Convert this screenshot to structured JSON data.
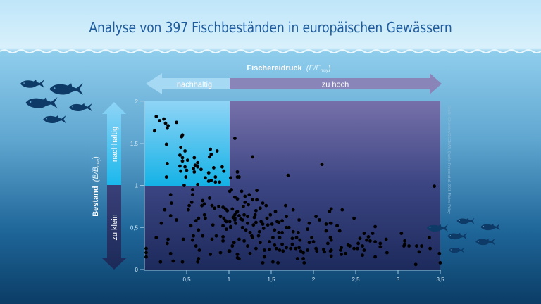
{
  "title": "Analyse von 397 Fischbeständen in europäischen Gewässern",
  "credit": "Grafik: C.Kersten/GEOMAR, Quelle: Froese et al. 2018 Marine Policy",
  "x_arrow": {
    "title_bold": "Fischereidruck",
    "title_formula": "(F/F",
    "title_sub": "msy",
    "title_close": ")",
    "left_label": "nachhaltig",
    "right_label": "zu hoch"
  },
  "y_arrow": {
    "title_bold": "Bestand",
    "title_formula": "(B/B",
    "title_sub": "msy",
    "title_close": ")",
    "top_label": "nachhaltig",
    "bottom_label": "zu klein"
  },
  "colors": {
    "sustainable_zone": "#5cc6f0",
    "overfished_zone": "#4a4f8e",
    "points": "#000000",
    "title": "#1f5c9e",
    "fish": "#0d3a66"
  },
  "chart_data": {
    "type": "scatter",
    "title": "Analyse von 397 Fischbeständen in europäischen Gewässern",
    "xlabel": "Fischereidruck (F/Fmsy)",
    "ylabel": "Bestand (B/Bmsy)",
    "xlim": [
      0,
      3.5
    ],
    "ylim": [
      0,
      2
    ],
    "x_ticks": [
      "0,5",
      "1",
      "1,5",
      "2",
      "2,5",
      "3",
      "3,5"
    ],
    "y_ticks": [
      "0",
      "0,5",
      "1",
      "1,5",
      "2"
    ],
    "x_tick_values": [
      0.5,
      1,
      1.5,
      2,
      2.5,
      3,
      3.5
    ],
    "y_tick_values": [
      0,
      0.5,
      1,
      1.5,
      2
    ],
    "zones": [
      {
        "label": "nachhaltig",
        "x": [
          0,
          1
        ],
        "y": [
          1,
          2
        ]
      }
    ],
    "grid": false,
    "points": [
      [
        0.14,
        1.82
      ],
      [
        0.18,
        1.77
      ],
      [
        0.23,
        1.79
      ],
      [
        0.25,
        1.74
      ],
      [
        0.28,
        1.71
      ],
      [
        0.27,
        1.68
      ],
      [
        0.38,
        1.75
      ],
      [
        0.12,
        1.65
      ],
      [
        0.45,
        1.6
      ],
      [
        0.44,
        1.58
      ],
      [
        0.26,
        1.49
      ],
      [
        0.43,
        1.45
      ],
      [
        0.48,
        1.41
      ],
      [
        0.42,
        1.36
      ],
      [
        0.45,
        1.33
      ],
      [
        0.45,
        1.29
      ],
      [
        0.51,
        1.3
      ],
      [
        0.59,
        1.33
      ],
      [
        0.63,
        1.27
      ],
      [
        0.27,
        1.26
      ],
      [
        0.42,
        1.23
      ],
      [
        0.48,
        1.22
      ],
      [
        0.5,
        1.18
      ],
      [
        0.6,
        1.24
      ],
      [
        0.58,
        1.2
      ],
      [
        0.63,
        1.22
      ],
      [
        0.59,
        1.16
      ],
      [
        0.67,
        1.19
      ],
      [
        0.43,
        1.17
      ],
      [
        0.26,
        1.1
      ],
      [
        0.49,
        1.1
      ],
      [
        0.78,
        1.43
      ],
      [
        0.79,
        1.37
      ],
      [
        0.77,
        1.34
      ],
      [
        0.86,
        1.41
      ],
      [
        0.82,
        1.21
      ],
      [
        0.92,
        1.22
      ],
      [
        0.94,
        1.17
      ],
      [
        0.76,
        1.15
      ],
      [
        0.72,
        1.09
      ],
      [
        0.76,
        1.05
      ],
      [
        0.79,
        1.06
      ],
      [
        0.84,
        1.1
      ],
      [
        0.84,
        1.04
      ],
      [
        0.89,
        1.04
      ],
      [
        1.02,
        1.09
      ],
      [
        0.47,
        1.0
      ],
      [
        0.63,
        1.01
      ],
      [
        1.07,
        1.56
      ],
      [
        1.1,
        1.16
      ],
      [
        1.1,
        1.1
      ],
      [
        0.57,
        0.95
      ],
      [
        0.57,
        0.89
      ],
      [
        0.31,
        0.89
      ],
      [
        0.32,
        0.79
      ],
      [
        0.56,
        0.8
      ],
      [
        0.53,
        0.76
      ],
      [
        0.69,
        0.82
      ],
      [
        0.71,
        0.78
      ],
      [
        0.68,
        0.76
      ],
      [
        0.77,
        0.85
      ],
      [
        0.8,
        0.76
      ],
      [
        0.88,
        0.75
      ],
      [
        0.83,
        0.73
      ],
      [
        0.24,
        0.71
      ],
      [
        0.52,
        0.71
      ],
      [
        0.31,
        0.64
      ],
      [
        0.38,
        0.59
      ],
      [
        0.2,
        0.55
      ],
      [
        0.64,
        0.61
      ],
      [
        0.61,
        0.58
      ],
      [
        0.71,
        0.65
      ],
      [
        0.72,
        0.61
      ],
      [
        0.55,
        0.52
      ],
      [
        0.64,
        0.47
      ],
      [
        0.81,
        0.53
      ],
      [
        0.93,
        0.74
      ],
      [
        0.96,
        0.72
      ],
      [
        0.9,
        0.63
      ],
      [
        0.94,
        0.61
      ],
      [
        0.97,
        0.57
      ],
      [
        0.93,
        0.52
      ],
      [
        0.97,
        0.48
      ],
      [
        1.02,
        0.51
      ],
      [
        1.07,
        0.61
      ],
      [
        1.09,
        0.68
      ],
      [
        1.07,
        0.86
      ],
      [
        0.14,
        0.38
      ],
      [
        0.28,
        0.36
      ],
      [
        0.27,
        0.31
      ],
      [
        0.46,
        0.36
      ],
      [
        0.57,
        0.35
      ],
      [
        0.58,
        0.4
      ],
      [
        0.69,
        0.4
      ],
      [
        0.8,
        0.36
      ],
      [
        0.85,
        0.4
      ],
      [
        0.93,
        0.39
      ],
      [
        0.93,
        0.34
      ],
      [
        1.06,
        0.32
      ],
      [
        1.04,
        0.28
      ],
      [
        0.61,
        0.28
      ],
      [
        0.65,
        0.23
      ],
      [
        0.31,
        0.19
      ],
      [
        0.78,
        0.18
      ],
      [
        0.9,
        0.2
      ],
      [
        1.01,
        0.22
      ],
      [
        0.02,
        0.25
      ],
      [
        0.02,
        0.2
      ],
      [
        0.02,
        0.15
      ],
      [
        0.19,
        0.09
      ],
      [
        0.34,
        0.1
      ],
      [
        0.45,
        0.09
      ],
      [
        0.63,
        0.09
      ],
      [
        0.64,
        0.13
      ],
      [
        1.1,
        0.18
      ],
      [
        1.1,
        0.14
      ],
      [
        1.28,
        1.34
      ],
      [
        2.1,
        1.25
      ],
      [
        1.7,
        1.12
      ],
      [
        1.12,
        1.1
      ],
      [
        1.03,
        0.95
      ],
      [
        1.01,
        0.93
      ],
      [
        1.15,
        0.93
      ],
      [
        1.33,
        0.94
      ],
      [
        1.07,
        0.86
      ],
      [
        1.1,
        0.84
      ],
      [
        1.19,
        0.87
      ],
      [
        1.24,
        0.89
      ],
      [
        1.28,
        0.83
      ],
      [
        1.33,
        0.83
      ],
      [
        1.19,
        0.8
      ],
      [
        1.23,
        0.77
      ],
      [
        1.4,
        0.79
      ],
      [
        1.44,
        0.76
      ],
      [
        1.67,
        0.76
      ],
      [
        1.37,
        0.73
      ],
      [
        1.32,
        0.7
      ],
      [
        1.17,
        0.75
      ],
      [
        1.04,
        0.72
      ],
      [
        1.1,
        0.69
      ],
      [
        0.98,
        0.7
      ],
      [
        1.76,
        0.71
      ],
      [
        1.55,
        0.69
      ],
      [
        1.07,
        0.65
      ],
      [
        1.12,
        0.64
      ],
      [
        1.18,
        0.65
      ],
      [
        1.31,
        0.65
      ],
      [
        1.49,
        0.65
      ],
      [
        1.68,
        0.63
      ],
      [
        2.19,
        0.69
      ],
      [
        1.05,
        0.62
      ],
      [
        1.07,
        0.59
      ],
      [
        1.14,
        0.6
      ],
      [
        1.22,
        0.63
      ],
      [
        1.3,
        0.62
      ],
      [
        1.45,
        0.61
      ],
      [
        2.03,
        0.63
      ],
      [
        2.07,
        0.59
      ],
      [
        0.96,
        0.58
      ],
      [
        1.01,
        0.57
      ],
      [
        1.08,
        0.55
      ],
      [
        1.16,
        0.59
      ],
      [
        1.22,
        0.55
      ],
      [
        1.32,
        0.56
      ],
      [
        1.38,
        0.57
      ],
      [
        1.4,
        0.54
      ],
      [
        1.46,
        0.53
      ],
      [
        1.51,
        0.54
      ],
      [
        1.57,
        0.57
      ],
      [
        1.63,
        0.58
      ],
      [
        1.59,
        0.56
      ],
      [
        1.83,
        0.59
      ],
      [
        1.95,
        0.55
      ],
      [
        2.15,
        0.54
      ],
      [
        2.2,
        0.55
      ],
      [
        2.28,
        0.52
      ],
      [
        1.02,
        0.5
      ],
      [
        1.16,
        0.5
      ],
      [
        1.2,
        0.47
      ],
      [
        1.25,
        0.44
      ],
      [
        1.29,
        0.53
      ],
      [
        1.36,
        0.45
      ],
      [
        1.41,
        0.49
      ],
      [
        1.54,
        0.47
      ],
      [
        1.59,
        0.44
      ],
      [
        1.63,
        0.44
      ],
      [
        1.68,
        0.5
      ],
      [
        1.71,
        0.5
      ],
      [
        1.76,
        0.45
      ],
      [
        1.82,
        0.44
      ],
      [
        1.93,
        0.48
      ],
      [
        2.15,
        0.46
      ],
      [
        1.27,
        0.4
      ],
      [
        1.28,
        0.38
      ],
      [
        1.35,
        0.4
      ],
      [
        1.52,
        0.38
      ],
      [
        1.6,
        0.38
      ],
      [
        1.75,
        0.37
      ],
      [
        1.8,
        0.38
      ],
      [
        1.84,
        0.35
      ],
      [
        1.98,
        0.38
      ],
      [
        2.2,
        0.38
      ],
      [
        1.12,
        0.36
      ],
      [
        1.06,
        0.32
      ],
      [
        1.18,
        0.34
      ],
      [
        1.48,
        0.33
      ],
      [
        2.0,
        0.33
      ],
      [
        1.95,
        0.32
      ],
      [
        1.37,
        0.32
      ],
      [
        1.54,
        0.29
      ],
      [
        1.63,
        0.3
      ],
      [
        1.75,
        0.3
      ],
      [
        2.17,
        0.31
      ],
      [
        1.0,
        0.22
      ],
      [
        1.04,
        0.28
      ],
      [
        1.22,
        0.28
      ],
      [
        1.32,
        0.25
      ],
      [
        1.42,
        0.23
      ],
      [
        1.48,
        0.24
      ],
      [
        1.56,
        0.25
      ],
      [
        1.6,
        0.23
      ],
      [
        1.64,
        0.22
      ],
      [
        1.68,
        0.26
      ],
      [
        1.73,
        0.25
      ],
      [
        1.79,
        0.25
      ],
      [
        1.83,
        0.26
      ],
      [
        1.85,
        0.22
      ],
      [
        1.88,
        0.2
      ],
      [
        1.93,
        0.23
      ],
      [
        2.03,
        0.25
      ],
      [
        2.04,
        0.22
      ],
      [
        2.12,
        0.24
      ],
      [
        2.13,
        0.21
      ],
      [
        2.2,
        0.22
      ],
      [
        1.1,
        0.18
      ],
      [
        1.12,
        0.13
      ],
      [
        1.25,
        0.19
      ],
      [
        1.42,
        0.15
      ],
      [
        1.4,
        0.08
      ],
      [
        1.52,
        0.09
      ],
      [
        1.58,
        0.08
      ],
      [
        1.81,
        0.13
      ],
      [
        1.88,
        0.13
      ],
      [
        1.89,
        0.08
      ],
      [
        3.43,
        0.99
      ],
      [
        2.34,
        0.71
      ],
      [
        2.48,
        0.61
      ],
      [
        2.28,
        0.52
      ],
      [
        2.31,
        0.46
      ],
      [
        2.73,
        0.51
      ],
      [
        2.7,
        0.43
      ],
      [
        2.6,
        0.43
      ],
      [
        2.55,
        0.37
      ],
      [
        2.65,
        0.39
      ],
      [
        2.63,
        0.35
      ],
      [
        2.67,
        0.34
      ],
      [
        2.73,
        0.33
      ],
      [
        2.79,
        0.31
      ],
      [
        2.79,
        0.27
      ],
      [
        2.86,
        0.36
      ],
      [
        2.53,
        0.31
      ],
      [
        2.52,
        0.25
      ],
      [
        2.48,
        0.25
      ],
      [
        2.41,
        0.29
      ],
      [
        2.43,
        0.28
      ],
      [
        2.33,
        0.26
      ],
      [
        2.32,
        0.23
      ],
      [
        2.38,
        0.19
      ],
      [
        2.33,
        0.18
      ],
      [
        2.58,
        0.17
      ],
      [
        2.6,
        0.23
      ],
      [
        2.58,
        0.28
      ],
      [
        2.73,
        0.15
      ],
      [
        2.87,
        0.2
      ],
      [
        3.04,
        0.43
      ],
      [
        3.08,
        0.34
      ],
      [
        3.08,
        0.3
      ],
      [
        3.07,
        0.28
      ],
      [
        3.13,
        0.28
      ],
      [
        3.22,
        0.28
      ],
      [
        3.28,
        0.28
      ],
      [
        3.25,
        0.21
      ],
      [
        3.37,
        0.38
      ],
      [
        3.38,
        0.25
      ],
      [
        3.49,
        0.19
      ],
      [
        3.5,
        0.08
      ],
      [
        3.21,
        0.06
      ],
      [
        2.21,
        0.72
      ],
      [
        2.21,
        0.55
      ],
      [
        2.21,
        0.35
      ],
      [
        2.21,
        0.23
      ],
      [
        2.21,
        0.16
      ]
    ]
  }
}
